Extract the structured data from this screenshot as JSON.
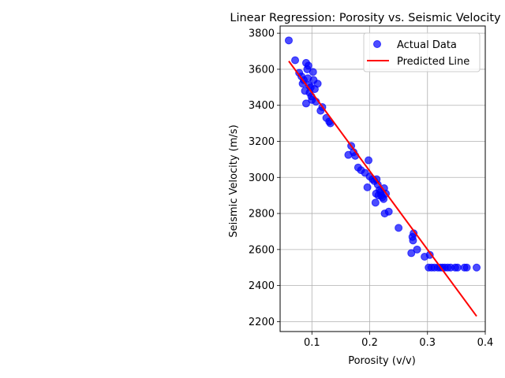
{
  "chart_data": {
    "type": "scatter",
    "title": "Linear Regression: Porosity vs. Seismic Velocity",
    "xlabel": "Porosity (v/v)",
    "ylabel": "Seismic Velocity (m/s)",
    "xlim": [
      0.045,
      0.4
    ],
    "ylim": [
      2145,
      3840
    ],
    "xticks": [
      0.1,
      0.2,
      0.3,
      0.4
    ],
    "xtick_labels": [
      "0.1",
      "0.2",
      "0.3",
      "0.4"
    ],
    "yticks": [
      2200,
      2400,
      2600,
      2800,
      3000,
      3200,
      3400,
      3600,
      3800
    ],
    "grid": true,
    "legend_position": "top-right",
    "series": [
      {
        "name": "Actual Data",
        "kind": "scatter",
        "color": "#0000ff",
        "points": [
          [
            0.06,
            3760
          ],
          [
            0.071,
            3650
          ],
          [
            0.078,
            3580
          ],
          [
            0.082,
            3560
          ],
          [
            0.084,
            3520
          ],
          [
            0.086,
            3540
          ],
          [
            0.088,
            3480
          ],
          [
            0.09,
            3635
          ],
          [
            0.09,
            3410
          ],
          [
            0.092,
            3600
          ],
          [
            0.093,
            3550
          ],
          [
            0.094,
            3620
          ],
          [
            0.095,
            3510
          ],
          [
            0.096,
            3470
          ],
          [
            0.098,
            3500
          ],
          [
            0.099,
            3450
          ],
          [
            0.1,
            3430
          ],
          [
            0.102,
            3585
          ],
          [
            0.103,
            3540
          ],
          [
            0.105,
            3490
          ],
          [
            0.107,
            3420
          ],
          [
            0.11,
            3520
          ],
          [
            0.115,
            3370
          ],
          [
            0.118,
            3390
          ],
          [
            0.125,
            3330
          ],
          [
            0.13,
            3310
          ],
          [
            0.132,
            3300
          ],
          [
            0.163,
            3125
          ],
          [
            0.168,
            3175
          ],
          [
            0.172,
            3140
          ],
          [
            0.175,
            3120
          ],
          [
            0.18,
            3055
          ],
          [
            0.185,
            3040
          ],
          [
            0.192,
            3025
          ],
          [
            0.196,
            2945
          ],
          [
            0.198,
            3095
          ],
          [
            0.2,
            3005
          ],
          [
            0.205,
            2990
          ],
          [
            0.208,
            2980
          ],
          [
            0.21,
            2860
          ],
          [
            0.211,
            2910
          ],
          [
            0.212,
            2990
          ],
          [
            0.214,
            2960
          ],
          [
            0.215,
            2900
          ],
          [
            0.217,
            2930
          ],
          [
            0.219,
            2920
          ],
          [
            0.22,
            2900
          ],
          [
            0.222,
            2890
          ],
          [
            0.224,
            2880
          ],
          [
            0.225,
            2940
          ],
          [
            0.226,
            2800
          ],
          [
            0.228,
            2910
          ],
          [
            0.233,
            2810
          ],
          [
            0.25,
            2720
          ],
          [
            0.272,
            2580
          ],
          [
            0.274,
            2670
          ],
          [
            0.275,
            2650
          ],
          [
            0.276,
            2690
          ],
          [
            0.282,
            2600
          ],
          [
            0.295,
            2560
          ],
          [
            0.302,
            2500
          ],
          [
            0.304,
            2570
          ],
          [
            0.307,
            2500
          ],
          [
            0.312,
            2500
          ],
          [
            0.318,
            2500
          ],
          [
            0.322,
            2500
          ],
          [
            0.326,
            2500
          ],
          [
            0.33,
            2500
          ],
          [
            0.335,
            2500
          ],
          [
            0.34,
            2500
          ],
          [
            0.348,
            2500
          ],
          [
            0.352,
            2500
          ],
          [
            0.364,
            2500
          ],
          [
            0.368,
            2500
          ],
          [
            0.385,
            2500
          ]
        ]
      },
      {
        "name": "Predicted Line",
        "kind": "line",
        "color": "#ff0000",
        "x": [
          0.06,
          0.385
        ],
        "y": [
          3645,
          2230
        ]
      }
    ]
  }
}
